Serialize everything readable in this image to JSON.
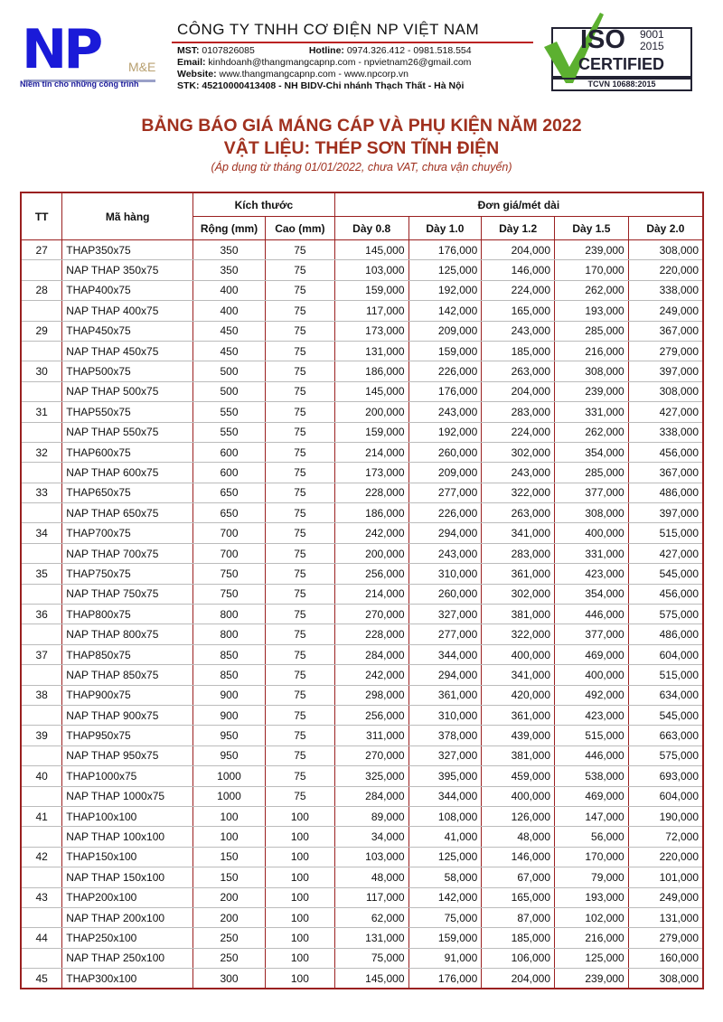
{
  "header": {
    "logo_text": "NP",
    "logo_sub": "M&E",
    "slogan": "Niềm tin cho những công trình",
    "company": "CÔNG TY TNHH CƠ ĐIỆN NP VIỆT NAM",
    "mst_label": "MST:",
    "mst": " 0107826085",
    "hotline_label": "Hotline:",
    "hotline": " 0974.326.412 - 0981.518.554",
    "email_label": "Email:",
    "email": " kinhdoanh@thangmangcapnp.com - npvietnam26@gmail.com",
    "website_label": "Website:",
    "website": " www.thangmangcapnp.com - www.npcorp.vn",
    "stk": "STK: 45210000413408 - NH BIDV-Chi nhánh Thạch Thất - Hà Nội",
    "iso": {
      "iso": "ISO",
      "years": "9001\n2015",
      "certified": "CERTIFIED",
      "tcvn": "TCVN 10688:2015"
    }
  },
  "title": {
    "line1": "BẢNG BÁO GIÁ MÁNG CÁP VÀ PHỤ KIỆN NĂM 2022",
    "line2": "VẬT LIỆU: THÉP SƠN TĨNH ĐIỆN",
    "note": "(Áp dụng từ tháng 01/01/2022, chưa VAT, chưa vận chuyển)"
  },
  "table": {
    "headers": {
      "tt": "TT",
      "code": "Mã hàng",
      "size": "Kích thước",
      "width": "Rộng (mm)",
      "height": "Cao (mm)",
      "price": "Đơn giá/mét dài",
      "thick": [
        "Dày 0.8",
        "Dày 1.0",
        "Dày 1.2",
        "Dày 1.5",
        "Dày 2.0"
      ]
    },
    "rows": [
      [
        "27",
        "THAP350x75",
        "350",
        "75",
        "145,000",
        "176,000",
        "204,000",
        "239,000",
        "308,000"
      ],
      [
        "",
        "NAP THAP 350x75",
        "350",
        "75",
        "103,000",
        "125,000",
        "146,000",
        "170,000",
        "220,000"
      ],
      [
        "28",
        "THAP400x75",
        "400",
        "75",
        "159,000",
        "192,000",
        "224,000",
        "262,000",
        "338,000"
      ],
      [
        "",
        "NAP THAP 400x75",
        "400",
        "75",
        "117,000",
        "142,000",
        "165,000",
        "193,000",
        "249,000"
      ],
      [
        "29",
        "THAP450x75",
        "450",
        "75",
        "173,000",
        "209,000",
        "243,000",
        "285,000",
        "367,000"
      ],
      [
        "",
        "NAP THAP 450x75",
        "450",
        "75",
        "131,000",
        "159,000",
        "185,000",
        "216,000",
        "279,000"
      ],
      [
        "30",
        "THAP500x75",
        "500",
        "75",
        "186,000",
        "226,000",
        "263,000",
        "308,000",
        "397,000"
      ],
      [
        "",
        "NAP THAP 500x75",
        "500",
        "75",
        "145,000",
        "176,000",
        "204,000",
        "239,000",
        "308,000"
      ],
      [
        "31",
        "THAP550x75",
        "550",
        "75",
        "200,000",
        "243,000",
        "283,000",
        "331,000",
        "427,000"
      ],
      [
        "",
        "NAP THAP 550x75",
        "550",
        "75",
        "159,000",
        "192,000",
        "224,000",
        "262,000",
        "338,000"
      ],
      [
        "32",
        "THAP600x75",
        "600",
        "75",
        "214,000",
        "260,000",
        "302,000",
        "354,000",
        "456,000"
      ],
      [
        "",
        "NAP THAP 600x75",
        "600",
        "75",
        "173,000",
        "209,000",
        "243,000",
        "285,000",
        "367,000"
      ],
      [
        "33",
        "THAP650x75",
        "650",
        "75",
        "228,000",
        "277,000",
        "322,000",
        "377,000",
        "486,000"
      ],
      [
        "",
        "NAP THAP 650x75",
        "650",
        "75",
        "186,000",
        "226,000",
        "263,000",
        "308,000",
        "397,000"
      ],
      [
        "34",
        "THAP700x75",
        "700",
        "75",
        "242,000",
        "294,000",
        "341,000",
        "400,000",
        "515,000"
      ],
      [
        "",
        "NAP THAP 700x75",
        "700",
        "75",
        "200,000",
        "243,000",
        "283,000",
        "331,000",
        "427,000"
      ],
      [
        "35",
        "THAP750x75",
        "750",
        "75",
        "256,000",
        "310,000",
        "361,000",
        "423,000",
        "545,000"
      ],
      [
        "",
        "NAP THAP 750x75",
        "750",
        "75",
        "214,000",
        "260,000",
        "302,000",
        "354,000",
        "456,000"
      ],
      [
        "36",
        "THAP800x75",
        "800",
        "75",
        "270,000",
        "327,000",
        "381,000",
        "446,000",
        "575,000"
      ],
      [
        "",
        "NAP THAP 800x75",
        "800",
        "75",
        "228,000",
        "277,000",
        "322,000",
        "377,000",
        "486,000"
      ],
      [
        "37",
        "THAP850x75",
        "850",
        "75",
        "284,000",
        "344,000",
        "400,000",
        "469,000",
        "604,000"
      ],
      [
        "",
        "NAP THAP 850x75",
        "850",
        "75",
        "242,000",
        "294,000",
        "341,000",
        "400,000",
        "515,000"
      ],
      [
        "38",
        "THAP900x75",
        "900",
        "75",
        "298,000",
        "361,000",
        "420,000",
        "492,000",
        "634,000"
      ],
      [
        "",
        "NAP THAP 900x75",
        "900",
        "75",
        "256,000",
        "310,000",
        "361,000",
        "423,000",
        "545,000"
      ],
      [
        "39",
        "THAP950x75",
        "950",
        "75",
        "311,000",
        "378,000",
        "439,000",
        "515,000",
        "663,000"
      ],
      [
        "",
        "NAP THAP 950x75",
        "950",
        "75",
        "270,000",
        "327,000",
        "381,000",
        "446,000",
        "575,000"
      ],
      [
        "40",
        "THAP1000x75",
        "1000",
        "75",
        "325,000",
        "395,000",
        "459,000",
        "538,000",
        "693,000"
      ],
      [
        "",
        "NAP THAP 1000x75",
        "1000",
        "75",
        "284,000",
        "344,000",
        "400,000",
        "469,000",
        "604,000"
      ],
      [
        "41",
        "THAP100x100",
        "100",
        "100",
        "89,000",
        "108,000",
        "126,000",
        "147,000",
        "190,000"
      ],
      [
        "",
        "NAP THAP 100x100",
        "100",
        "100",
        "34,000",
        "41,000",
        "48,000",
        "56,000",
        "72,000"
      ],
      [
        "42",
        "THAP150x100",
        "150",
        "100",
        "103,000",
        "125,000",
        "146,000",
        "170,000",
        "220,000"
      ],
      [
        "",
        "NAP THAP 150x100",
        "150",
        "100",
        "48,000",
        "58,000",
        "67,000",
        "79,000",
        "101,000"
      ],
      [
        "43",
        "THAP200x100",
        "200",
        "100",
        "117,000",
        "142,000",
        "165,000",
        "193,000",
        "249,000"
      ],
      [
        "",
        "NAP THAP 200x100",
        "200",
        "100",
        "62,000",
        "75,000",
        "87,000",
        "102,000",
        "131,000"
      ],
      [
        "44",
        "THAP250x100",
        "250",
        "100",
        "131,000",
        "159,000",
        "185,000",
        "216,000",
        "279,000"
      ],
      [
        "",
        "NAP THAP 250x100",
        "250",
        "100",
        "75,000",
        "91,000",
        "106,000",
        "125,000",
        "160,000"
      ],
      [
        "45",
        "THAP300x100",
        "300",
        "100",
        "145,000",
        "176,000",
        "204,000",
        "239,000",
        "308,000"
      ]
    ]
  },
  "colors": {
    "title": "#a0301e",
    "border": "#9a2020",
    "logo": "#1a1ad8"
  }
}
